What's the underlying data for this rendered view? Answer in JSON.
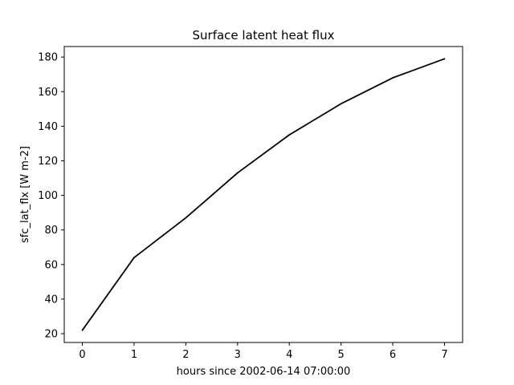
{
  "chart_data": {
    "type": "line",
    "title": "Surface latent heat flux",
    "xlabel": "hours since 2002-06-14 07:00:00",
    "ylabel": "sfc_lat_flx [W m-2]",
    "x": [
      0,
      1,
      2,
      3,
      4,
      5,
      6,
      7
    ],
    "series": [
      {
        "values": [
          22,
          64,
          87,
          113,
          135,
          153,
          168,
          179
        ],
        "color": "#000000"
      }
    ],
    "xlim": [
      -0.35,
      7.35
    ],
    "ylim": [
      14.9,
      186.1
    ],
    "xticks": [
      0,
      1,
      2,
      3,
      4,
      5,
      6,
      7
    ],
    "yticks": [
      20,
      40,
      60,
      80,
      100,
      120,
      140,
      160,
      180
    ],
    "grid": false,
    "legend": "none"
  }
}
